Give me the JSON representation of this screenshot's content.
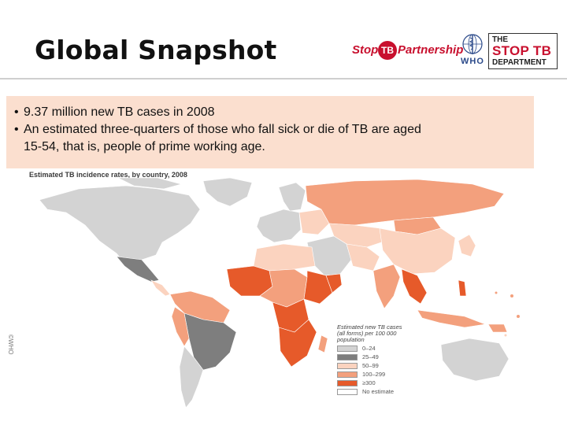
{
  "slide": {
    "title": "Global Snapshot",
    "bullets": [
      "9.37 million new TB cases in 2008",
      "An estimated three-quarters of those who fall sick or die of TB are aged",
      "15-54, that is, people of prime working age."
    ]
  },
  "logos": {
    "stoptb_left": "Stop",
    "stoptb_mark": "TB",
    "stoptb_right": "Partnership",
    "who": "WHO",
    "dept_line1": "THE",
    "dept_line2": "STOP TB",
    "dept_line3": "DEPARTMENT"
  },
  "map": {
    "title": "Estimated TB incidence rates, by country, 2008",
    "side_label": "©WHO",
    "legend_title": "Estimated new TB cases (all forms) per 100 000 population",
    "legend": [
      {
        "label": "0–24",
        "color": "#d3d3d3"
      },
      {
        "label": "25–49",
        "color": "#7e7e7e"
      },
      {
        "label": "50–99",
        "color": "#fbd3bf"
      },
      {
        "label": "100–299",
        "color": "#f3a07d"
      },
      {
        "label": "≥300",
        "color": "#e65a2a"
      },
      {
        "label": "No estimate",
        "color": "#ffffff"
      }
    ]
  }
}
